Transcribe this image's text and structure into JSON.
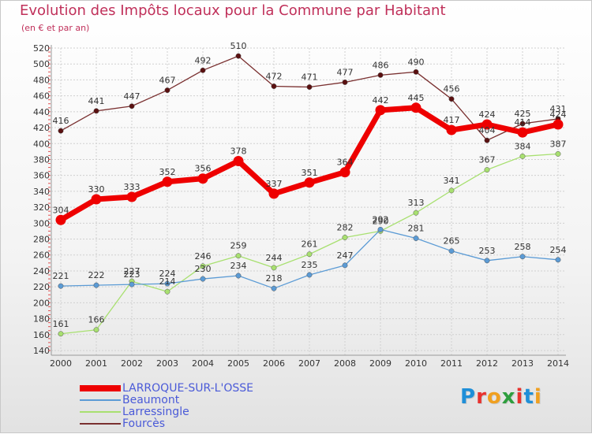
{
  "title": "Evolution des Impôts locaux pour la Commune par Habitant",
  "subtitle": "(en € et par an)",
  "chart_data": {
    "type": "line",
    "title": "Evolution des Impôts locaux pour la Commune par Habitant",
    "subtitle": "(en € et par an)",
    "xlabel": "",
    "ylabel": "",
    "x": [
      2000,
      2001,
      2002,
      2003,
      2004,
      2005,
      2006,
      2007,
      2008,
      2009,
      2010,
      2011,
      2012,
      2013,
      2014
    ],
    "ylim": [
      140,
      520
    ],
    "yticks": [
      140,
      160,
      180,
      200,
      220,
      240,
      260,
      280,
      300,
      320,
      340,
      360,
      380,
      400,
      420,
      440,
      460,
      480,
      500,
      520
    ],
    "grid": true,
    "legend_position": "bottom-left",
    "series": [
      {
        "name": "LARROQUE-SUR-L'OSSE",
        "color": "#ee0000",
        "values": [
          304,
          330,
          333,
          352,
          356,
          378,
          337,
          351,
          364,
          442,
          445,
          417,
          424,
          414,
          424
        ]
      },
      {
        "name": "Beaumont",
        "color": "#5b9bd5",
        "values": [
          221,
          222,
          223,
          224,
          230,
          234,
          218,
          235,
          247,
          292,
          281,
          265,
          253,
          258,
          254
        ]
      },
      {
        "name": "Larressingle",
        "color": "#a8e070",
        "values": [
          161,
          166,
          227,
          214,
          246,
          259,
          244,
          261,
          282,
          290,
          313,
          341,
          367,
          384,
          387
        ]
      },
      {
        "name": "Fourcès",
        "color": "#7a3030",
        "values": [
          416,
          441,
          447,
          467,
          492,
          510,
          472,
          471,
          477,
          486,
          490,
          456,
          404,
          425,
          431
        ]
      }
    ]
  },
  "legend": {
    "items": [
      {
        "label": "LARROQUE-SUR-L'OSSE",
        "color": "#ee0000"
      },
      {
        "label": "Beaumont",
        "color": "#5b9bd5"
      },
      {
        "label": "Larressingle",
        "color": "#a8e070"
      },
      {
        "label": "Fourcès",
        "color": "#7a3030"
      }
    ]
  },
  "logo": {
    "letters": [
      "P",
      "r",
      "o",
      "x",
      "i",
      "t",
      "i"
    ],
    "colors": [
      "#1f8fd8",
      "#e8322e",
      "#f0a020",
      "#2e9e3e",
      "#e8322e",
      "#1f8fd8",
      "#f0a020"
    ]
  }
}
